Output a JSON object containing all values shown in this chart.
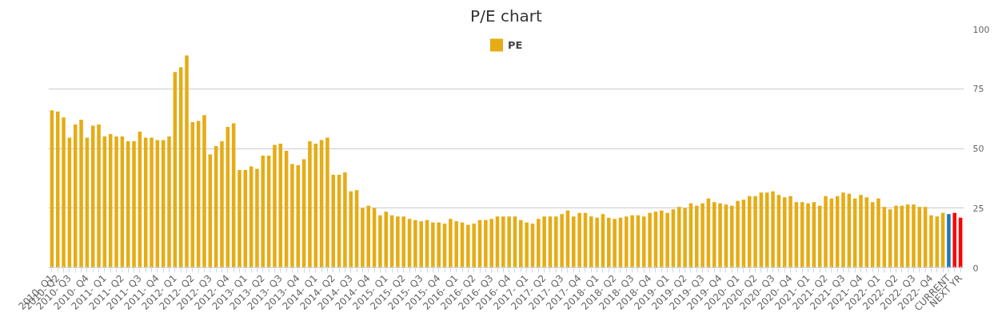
{
  "chart_data": {
    "type": "bar",
    "title": "P/E chart",
    "categories": [
      "2010- Q1",
      "2010- Q2",
      null,
      "2010- Q3",
      null,
      null,
      "2010- Q4",
      null,
      null,
      "2011- Q1",
      null,
      null,
      "2011- Q2",
      null,
      null,
      "2011- Q3",
      null,
      null,
      "2011- Q4",
      null,
      null,
      "2012- Q1",
      null,
      null,
      "2012- Q2",
      null,
      null,
      "2012- Q3",
      null,
      null,
      "2012- Q4",
      null,
      null,
      "2013- Q1",
      null,
      null,
      "2013- Q2",
      null,
      null,
      "2013- Q3",
      null,
      null,
      "2013- Q4",
      null,
      null,
      "2014- Q1",
      null,
      null,
      "2014- Q2",
      null,
      null,
      "2014- Q3",
      null,
      null,
      "2014- Q4",
      null,
      null,
      "2015- Q1",
      null,
      null,
      "2015- Q2",
      null,
      null,
      "2015- Q3",
      null,
      null,
      "2015- Q4",
      null,
      null,
      "2016- Q1",
      null,
      null,
      "2016- Q2",
      null,
      null,
      "2016- Q3",
      null,
      null,
      "2016- Q4",
      null,
      null,
      "2017- Q1",
      null,
      null,
      "2017- Q2",
      null,
      null,
      "2017- Q3",
      null,
      null,
      "2017- Q4",
      null,
      null,
      "2018- Q1",
      null,
      null,
      "2018- Q2",
      null,
      null,
      "2018- Q3",
      null,
      null,
      "2018- Q4",
      null,
      null,
      "2019- Q1",
      null,
      null,
      "2019- Q2",
      null,
      null,
      "2019- Q3",
      null,
      null,
      "2019- Q4",
      null,
      null,
      "2020- Q1",
      null,
      null,
      "2020- Q2",
      null,
      null,
      "2020- Q3",
      null,
      null,
      "2020- Q4",
      null,
      null,
      "2021- Q1",
      null,
      null,
      "2021- Q2",
      null,
      null,
      "2021- Q3",
      null,
      null,
      "2021- Q4",
      null,
      null,
      "2022- Q1",
      null,
      null,
      "2022- Q2",
      null,
      null,
      "2022- Q3",
      null,
      null,
      "2022- Q4",
      null,
      null,
      "CURRENT",
      null,
      "NEXT YR"
    ],
    "series": [
      {
        "name": "PE",
        "color": "#e5ac15",
        "values": [
          66,
          65.5,
          63,
          54.5,
          60,
          62,
          54.5,
          59.5,
          60,
          55,
          56,
          55,
          55,
          53,
          53,
          57,
          54.5,
          54.5,
          53.5,
          53.5,
          55,
          82,
          84,
          89,
          61,
          61.5,
          64,
          47.5,
          51,
          53,
          59,
          60.5,
          41,
          41,
          42.5,
          41.5,
          47,
          47,
          51.5,
          52,
          49,
          43.5,
          43,
          45.5,
          53,
          52,
          53.5,
          54.5,
          39,
          39,
          40,
          32,
          32.5,
          25,
          26,
          25,
          22,
          23.5,
          22,
          21.5,
          21.5,
          20.5,
          20,
          19.5,
          20,
          19,
          19,
          18.5,
          20.5,
          19.5,
          19,
          18,
          18.5,
          20,
          20,
          20.5,
          21.5,
          21.5,
          21.5,
          21.5,
          20,
          19,
          18.5,
          20.5,
          21.5,
          21.5,
          21.5,
          22.5,
          24,
          21.5,
          23,
          23,
          21.5,
          21,
          22.5,
          21,
          20.5,
          21,
          21.5,
          22,
          22,
          21.5,
          23,
          23.5,
          24,
          23,
          24.5,
          25.5,
          25,
          27,
          26,
          27,
          29,
          27.5,
          27,
          26.5,
          26,
          28,
          28.5,
          30,
          30,
          31.5,
          31.5,
          32,
          30.5,
          29.5,
          30,
          27.5,
          27.5,
          27,
          27.5,
          26,
          30,
          29,
          30,
          31.5,
          31,
          29,
          30.5,
          29.5,
          27.5,
          29,
          25.5,
          24.5,
          26,
          26,
          26.5,
          26.5,
          25.5,
          25.5,
          22,
          21.5,
          23,
          22.5,
          23,
          21
        ],
        "colors": [
          "#e5ac15",
          "#e5ac15",
          "#e5ac15",
          "#e5ac15",
          "#e5ac15",
          "#e5ac15",
          "#e5ac15",
          "#e5ac15",
          "#e5ac15",
          "#e5ac15",
          "#e5ac15",
          "#e5ac15",
          "#e5ac15",
          "#e5ac15",
          "#e5ac15",
          "#e5ac15",
          "#e5ac15",
          "#e5ac15",
          "#e5ac15",
          "#e5ac15",
          "#e5ac15",
          "#e5ac15",
          "#e5ac15",
          "#e5ac15",
          "#e5ac15",
          "#e5ac15",
          "#e5ac15",
          "#e5ac15",
          "#e5ac15",
          "#e5ac15",
          "#e5ac15",
          "#e5ac15",
          "#e5ac15",
          "#e5ac15",
          "#e5ac15",
          "#e5ac15",
          "#e5ac15",
          "#e5ac15",
          "#e5ac15",
          "#e5ac15",
          "#e5ac15",
          "#e5ac15",
          "#e5ac15",
          "#e5ac15",
          "#e5ac15",
          "#e5ac15",
          "#e5ac15",
          "#e5ac15",
          "#e5ac15",
          "#e5ac15",
          "#e5ac15",
          "#e5ac15",
          "#e5ac15",
          "#e5ac15",
          "#e5ac15",
          "#e5ac15",
          "#e5ac15",
          "#e5ac15",
          "#e5ac15",
          "#e5ac15",
          "#e5ac15",
          "#e5ac15",
          "#e5ac15",
          "#e5ac15",
          "#e5ac15",
          "#e5ac15",
          "#e5ac15",
          "#e5ac15",
          "#e5ac15",
          "#e5ac15",
          "#e5ac15",
          "#e5ac15",
          "#e5ac15",
          "#e5ac15",
          "#e5ac15",
          "#e5ac15",
          "#e5ac15",
          "#e5ac15",
          "#e5ac15",
          "#e5ac15",
          "#e5ac15",
          "#e5ac15",
          "#e5ac15",
          "#e5ac15",
          "#e5ac15",
          "#e5ac15",
          "#e5ac15",
          "#e5ac15",
          "#e5ac15",
          "#e5ac15",
          "#e5ac15",
          "#e5ac15",
          "#e5ac15",
          "#e5ac15",
          "#e5ac15",
          "#e5ac15",
          "#e5ac15",
          "#e5ac15",
          "#e5ac15",
          "#e5ac15",
          "#e5ac15",
          "#e5ac15",
          "#e5ac15",
          "#e5ac15",
          "#e5ac15",
          "#e5ac15",
          "#e5ac15",
          "#e5ac15",
          "#e5ac15",
          "#e5ac15",
          "#e5ac15",
          "#e5ac15",
          "#e5ac15",
          "#e5ac15",
          "#e5ac15",
          "#e5ac15",
          "#e5ac15",
          "#e5ac15",
          "#e5ac15",
          "#e5ac15",
          "#e5ac15",
          "#e5ac15",
          "#e5ac15",
          "#e5ac15",
          "#e5ac15",
          "#e5ac15",
          "#e5ac15",
          "#e5ac15",
          "#e5ac15",
          "#e5ac15",
          "#e5ac15",
          "#e5ac15",
          "#e5ac15",
          "#e5ac15",
          "#e5ac15",
          "#e5ac15",
          "#e5ac15",
          "#e5ac15",
          "#e5ac15",
          "#e5ac15",
          "#e5ac15",
          "#e5ac15",
          "#e5ac15",
          "#e5ac15",
          "#e5ac15",
          "#e5ac15",
          "#e5ac15",
          "#e5ac15",
          "#e5ac15",
          "#e5ac15",
          "#e5ac15",
          "#e5ac15",
          "#e5ac15",
          "#1f77b4",
          "#ff0000",
          "#ff0000"
        ]
      }
    ],
    "ylim": [
      0,
      100
    ],
    "yticks": [
      0,
      25,
      50,
      75,
      100
    ],
    "grid": "y",
    "legend": "top"
  }
}
